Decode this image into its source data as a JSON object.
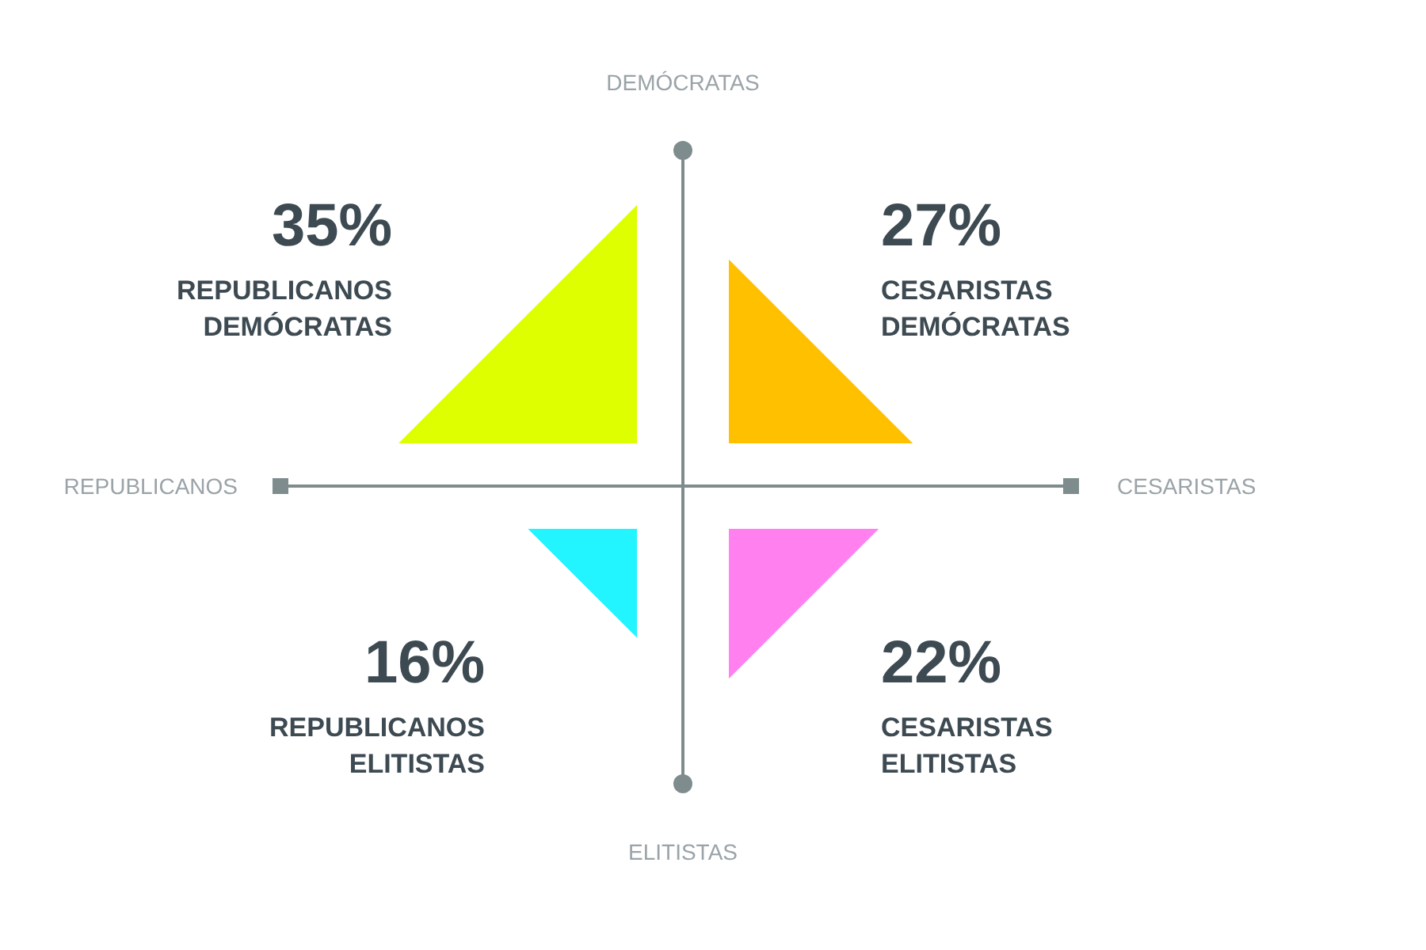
{
  "chart_data": {
    "type": "other",
    "categories": [
      "REPUBLICANOS DEMÓCRATAS",
      "CESARISTAS DEMÓCRATAS",
      "REPUBLICANOS ELITISTAS",
      "CESARISTAS ELITISTAS"
    ],
    "values": [
      35,
      27,
      16,
      22
    ],
    "value_labels": [
      "35%",
      "27%",
      "16%",
      "22%"
    ],
    "colors": [
      "#ddff00",
      "#ffc000",
      "#22f5ff",
      "#ff80ee"
    ],
    "annotations": [
      "DEMÓCRATAS",
      "CESARISTAS",
      "ELITISTAS",
      "REPUBLICANOS"
    ]
  }
}
